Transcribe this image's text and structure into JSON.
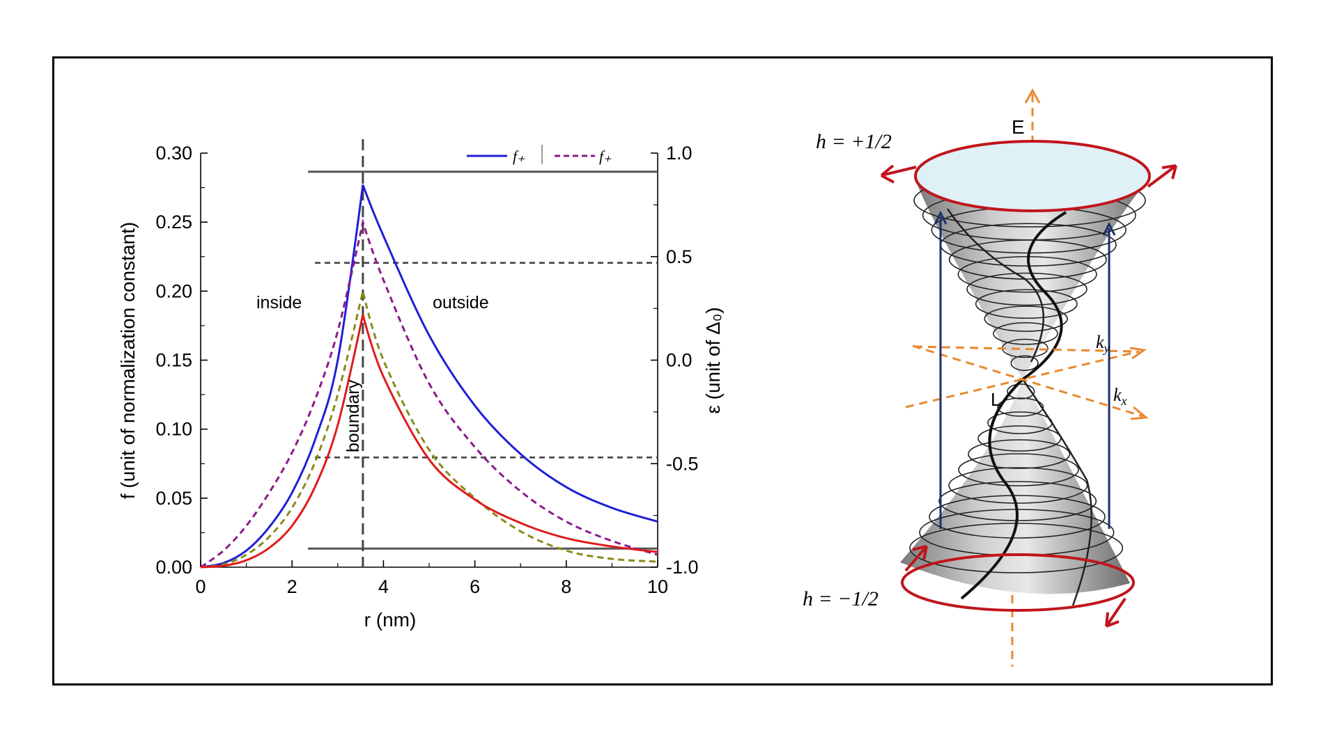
{
  "chart_data": {
    "type": "line",
    "xlabel": "r (nm)",
    "ylabel": "f (unit of normalization constant)",
    "ylabel_right": "ε (unit of Δ₀)",
    "xlim": [
      0,
      10
    ],
    "ylim": [
      0,
      0.3
    ],
    "ylim_right": [
      -1.0,
      1.0
    ],
    "x_ticks": [
      "0",
      "2",
      "4",
      "6",
      "8",
      "10"
    ],
    "y_ticks": [
      "0.00",
      "0.05",
      "0.10",
      "0.15",
      "0.20",
      "0.25",
      "0.30"
    ],
    "y_right_ticks": [
      "-1.0",
      "-0.5",
      "0.0",
      "0.5",
      "1.0"
    ],
    "legend": {
      "placement": "top-right",
      "entries": [
        {
          "label": "f₊",
          "style": "solid",
          "color": "#1f1fd6"
        },
        {
          "label": "f₊",
          "style": "dashed",
          "color": "#8b1a8b"
        }
      ]
    },
    "boundary_x": 3.55,
    "annotations": {
      "inside": "inside",
      "outside": "outside",
      "boundary": "boundary"
    },
    "levels_right": {
      "solid": [
        0.91,
        -0.91
      ],
      "dashed": [
        0.47,
        -0.47
      ]
    },
    "series": [
      {
        "color": "#1f1fd6",
        "style": "solid",
        "x": [
          0,
          0.5,
          1,
          1.5,
          2,
          2.5,
          3,
          3.55,
          4,
          5,
          6,
          7,
          8,
          9,
          10
        ],
        "y": [
          0.0,
          0.003,
          0.012,
          0.029,
          0.054,
          0.092,
          0.15,
          0.277,
          0.24,
          0.168,
          0.117,
          0.082,
          0.058,
          0.043,
          0.033
        ]
      },
      {
        "color": "#8b1a8b",
        "style": "dashed",
        "x": [
          0,
          0.5,
          1,
          1.5,
          2,
          2.5,
          3,
          3.55,
          4,
          5,
          6,
          7,
          8,
          9,
          10
        ],
        "y": [
          0.0,
          0.012,
          0.03,
          0.054,
          0.083,
          0.121,
          0.171,
          0.25,
          0.208,
          0.133,
          0.087,
          0.055,
          0.033,
          0.019,
          0.009
        ]
      },
      {
        "color": "#8a8a1a",
        "style": "dashed",
        "x": [
          0,
          0.5,
          1,
          1.5,
          2,
          2.5,
          3,
          3.55,
          4,
          5,
          6,
          7,
          8,
          9,
          10
        ],
        "y": [
          0.0,
          0.002,
          0.009,
          0.022,
          0.043,
          0.076,
          0.125,
          0.2,
          0.15,
          0.085,
          0.05,
          0.026,
          0.012,
          0.006,
          0.004
        ]
      },
      {
        "color": "#e01b1b",
        "style": "solid",
        "x": [
          0,
          0.5,
          1,
          1.5,
          2,
          2.5,
          3,
          3.55,
          4,
          5,
          6,
          7,
          8,
          9,
          10
        ],
        "y": [
          0.0,
          0.001,
          0.005,
          0.014,
          0.03,
          0.058,
          0.103,
          0.183,
          0.138,
          0.078,
          0.049,
          0.032,
          0.021,
          0.015,
          0.011
        ]
      }
    ]
  },
  "diagram": {
    "labels": {
      "h_plus": "h = +1/2",
      "h_minus": "h = −1/2",
      "energy": "E",
      "point": "L",
      "ky": "k",
      "ky_sub": "y",
      "kx": "k",
      "kx_sub": "x"
    },
    "colors": {
      "rim": "#c0151b",
      "axes": "#e8892d",
      "transitions": "#1c2f6b",
      "top_face": "#dff0f6",
      "cone": "#a8a8a8"
    }
  }
}
